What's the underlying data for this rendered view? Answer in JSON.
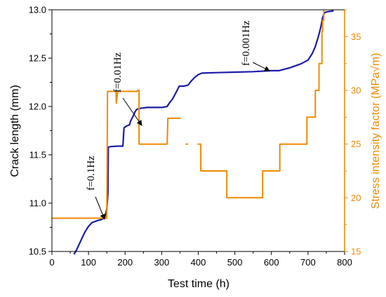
{
  "chart_data": {
    "type": "line",
    "xlabel": "Test time (h)",
    "ylabel": "Crack length (mm)",
    "y2label": "Stress intensity factor (MPa√m)",
    "xlim": [
      0,
      800
    ],
    "ylim": [
      10.5,
      13.0
    ],
    "y2lim": [
      15,
      37.5
    ],
    "x_ticks": [
      0,
      100,
      200,
      300,
      400,
      500,
      600,
      700,
      800
    ],
    "y_ticks": [
      10.5,
      11.0,
      11.5,
      12.0,
      12.5,
      13.0
    ],
    "y2_ticks": [
      15,
      20,
      25,
      30,
      35
    ],
    "x_tick_labels": [
      "0",
      "100",
      "200",
      "300",
      "400",
      "500",
      "600",
      "700",
      "800"
    ],
    "y_tick_labels": [
      "10.5",
      "11.0",
      "11.5",
      "12.0",
      "12.5",
      "13.0"
    ],
    "y2_tick_labels": [
      "15",
      "20",
      "25",
      "30",
      "35"
    ],
    "grid": false,
    "legend": "none",
    "series": [
      {
        "axis": "left",
        "color": "#1c1caa",
        "points": [
          [
            60,
            10.47
          ],
          [
            68,
            10.52
          ],
          [
            80,
            10.62
          ],
          [
            90,
            10.7
          ],
          [
            100,
            10.76
          ],
          [
            110,
            10.8
          ],
          [
            125,
            10.82
          ],
          [
            135,
            10.83
          ],
          [
            140,
            10.84
          ],
          [
            145,
            10.86
          ],
          [
            150,
            10.94
          ],
          [
            153,
            11.1
          ],
          [
            154,
            11.58
          ],
          [
            160,
            11.585
          ],
          [
            180,
            11.59
          ],
          [
            194,
            11.59
          ],
          [
            197,
            11.78
          ],
          [
            205,
            11.8
          ],
          [
            212,
            11.81
          ],
          [
            215,
            11.85
          ],
          [
            222,
            11.9
          ],
          [
            228,
            11.95
          ],
          [
            232,
            11.97
          ],
          [
            240,
            11.98
          ],
          [
            260,
            11.99
          ],
          [
            280,
            11.99
          ],
          [
            300,
            11.99
          ],
          [
            315,
            12.0
          ],
          [
            320,
            12.03
          ],
          [
            330,
            12.08
          ],
          [
            340,
            12.15
          ],
          [
            348,
            12.21
          ],
          [
            360,
            12.21
          ],
          [
            372,
            12.22
          ],
          [
            380,
            12.26
          ],
          [
            390,
            12.3
          ],
          [
            400,
            12.33
          ],
          [
            410,
            12.345
          ],
          [
            450,
            12.35
          ],
          [
            500,
            12.355
          ],
          [
            550,
            12.36
          ],
          [
            600,
            12.37
          ],
          [
            620,
            12.37
          ],
          [
            650,
            12.4
          ],
          [
            680,
            12.44
          ],
          [
            700,
            12.48
          ],
          [
            712,
            12.55
          ],
          [
            720,
            12.62
          ],
          [
            728,
            12.72
          ],
          [
            735,
            12.82
          ],
          [
            740,
            12.92
          ],
          [
            745,
            12.97
          ],
          [
            752,
            12.98
          ],
          [
            762,
            12.985
          ],
          [
            770,
            12.99
          ]
        ]
      },
      {
        "axis": "right",
        "color": "#f08a00",
        "points": [
          [
            0,
            18.1
          ],
          [
            100,
            18.1
          ],
          [
            140,
            18.1
          ],
          [
            150,
            18.1
          ],
          [
            152,
            29.9
          ],
          [
            175,
            29.9
          ],
          [
            176,
            28.8
          ],
          [
            180,
            29.9
          ],
          [
            233,
            29.9
          ],
          [
            234,
            30.0
          ],
          [
            238,
            30.0
          ],
          [
            238,
            25.0
          ],
          [
            315,
            25.0
          ],
          [
            317,
            27.4
          ],
          [
            345,
            27.4
          ],
          [
            347,
            27.4
          ],
          [
            350,
            27.4
          ]
        ]
      },
      {
        "axis": "right",
        "color": "#f08a00",
        "points": [
          [
            398,
            25.0
          ],
          [
            402,
            25.0
          ],
          [
            402,
            25.0
          ],
          [
            407,
            25.0
          ],
          [
            407,
            22.5
          ],
          [
            478,
            22.5
          ],
          [
            478,
            20.0
          ],
          [
            576,
            20.0
          ],
          [
            576,
            22.5
          ],
          [
            623,
            22.5
          ],
          [
            623,
            25.0
          ],
          [
            697,
            25.0
          ],
          [
            697,
            27.5
          ],
          [
            720,
            27.5
          ],
          [
            720,
            30.0
          ],
          [
            730,
            30.0
          ],
          [
            730,
            32.5
          ],
          [
            738,
            32.5
          ],
          [
            738,
            35.5
          ],
          [
            740,
            35.5
          ],
          [
            740,
            36.5
          ],
          [
            743,
            36.5
          ],
          [
            743,
            37.5
          ]
        ]
      },
      {
        "axis": "right",
        "color": "#f08a00",
        "points": [
          [
            348,
            27.4
          ],
          [
            352,
            27.4
          ],
          [
            352,
            27.4
          ]
        ]
      },
      {
        "axis": "right",
        "color": "#f08a00",
        "points": [
          [
            365,
            25.0
          ],
          [
            372,
            25.0
          ]
        ]
      }
    ],
    "annotations": [
      {
        "text": "f=0.1Hz",
        "x": 145,
        "y": 10.86
      },
      {
        "text": "f=0.01Hz",
        "x": 207,
        "y": 11.82
      },
      {
        "text": "f=0.001Hz",
        "x": 580,
        "y": 12.37
      }
    ]
  }
}
